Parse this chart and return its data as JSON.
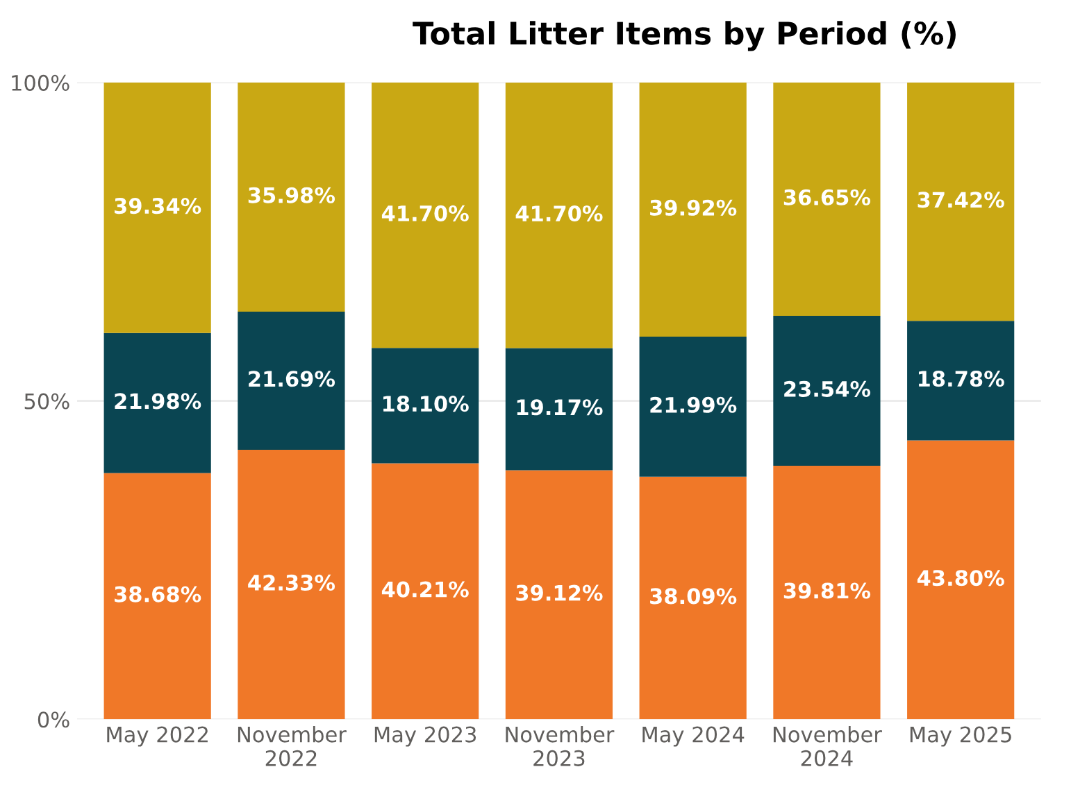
{
  "chart_data": {
    "type": "bar",
    "title": "Total Litter Items by Period (%)",
    "stacked": true,
    "categories": [
      "May 2022",
      "November\n2022",
      "May 2023",
      "November\n2023",
      "May 2024",
      "November\n2024",
      "May 2025"
    ],
    "series": [
      {
        "color": "#f07828",
        "values": [
          38.68,
          42.33,
          40.21,
          39.12,
          38.09,
          39.81,
          43.8
        ],
        "value_labels": [
          "38.68%",
          "42.33%",
          "40.21%",
          "39.12%",
          "38.09%",
          "39.81%",
          "43.80%"
        ]
      },
      {
        "color": "#0a4552",
        "values": [
          21.98,
          21.69,
          18.1,
          19.17,
          21.99,
          23.54,
          18.78
        ],
        "value_labels": [
          "21.98%",
          "21.69%",
          "18.10%",
          "19.17%",
          "21.99%",
          "23.54%",
          "18.78%"
        ]
      },
      {
        "color": "#c9a814",
        "values": [
          39.34,
          35.98,
          41.7,
          41.7,
          39.92,
          36.65,
          37.42
        ],
        "value_labels": [
          "39.34%",
          "35.98%",
          "41.70%",
          "41.70%",
          "39.92%",
          "36.65%",
          "37.42%"
        ]
      }
    ],
    "ylim": [
      0,
      100
    ],
    "yticks": [
      {
        "value": 0,
        "label": "0%"
      },
      {
        "value": 50,
        "label": "50%"
      },
      {
        "value": 100,
        "label": "100%"
      }
    ],
    "grid": "y",
    "legend": false
  }
}
